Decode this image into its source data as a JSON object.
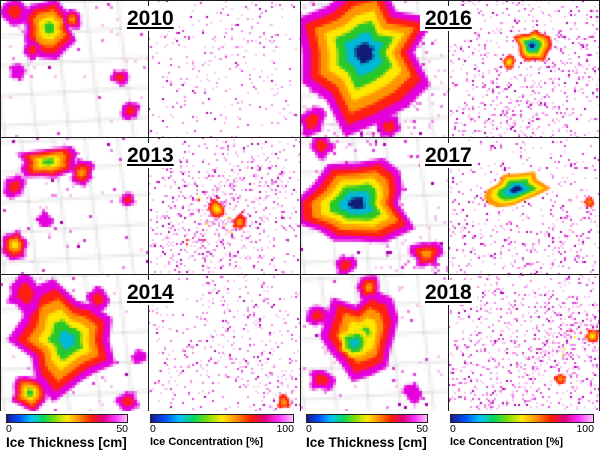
{
  "labels": {
    "y2010": "2010",
    "y2013": "2013",
    "y2014": "2014",
    "y2016": "2016",
    "y2017": "2017",
    "y2018": "2018"
  },
  "colorbars": {
    "thickness": {
      "label": "Ice Thickness [cm]",
      "tick_min": "0",
      "tick_max": "50"
    },
    "concentration": {
      "label": "Ice Concentration [%]",
      "tick_min": "0",
      "tick_max": "100"
    }
  },
  "chart_data": {
    "type": "heatmap",
    "description": "3x2 grid of paired satellite map panels. For each year the left panel is sea-ice thickness (0-50 cm) and the right panel is sea-ice concentration (0-100 %). Left pair column: 2010, 2013, 2014. Right pair column: 2016, 2017, 2018. In 2016 and 2017 a large polynya appears as a dark navy core ringed by green/yellow/red inside a magenta field; other years show smaller scattered features. Background white; concentration panels are speckled pink/magenta.",
    "years": [
      "2010",
      "2013",
      "2014",
      "2016",
      "2017",
      "2018"
    ],
    "variables": [
      {
        "name": "ice_thickness",
        "label": "Ice Thickness [cm]",
        "range": [
          0,
          50
        ]
      },
      {
        "name": "ice_concentration",
        "label": "Ice Concentration [%]",
        "range": [
          0,
          100
        ]
      }
    ],
    "colorbar_gradient": [
      "#1a1a90",
      "#0050ff",
      "#00c0ff",
      "#00d860",
      "#80e000",
      "#ffe800",
      "#ff9000",
      "#ff2000",
      "#e00080",
      "#ff30ff",
      "#ffc0ff"
    ],
    "colormap_ramp": [
      "#ffb0f8",
      "#e400dc",
      "#ff2010",
      "#ff9500",
      "#ffe800",
      "#28c828",
      "#00b8d8",
      "#101c78"
    ],
    "panels": {
      "p2010t": {
        "year": "2010",
        "variable": "ice_thickness",
        "pixel": 3,
        "grid": true,
        "seed": 11,
        "speckle": {
          "base": 0.012,
          "centers": [
            {
              "x": 0.3,
              "y": 0.25,
              "r": 0.5,
              "b": 0.03
            }
          ]
        },
        "blobs": [
          {
            "x": 0.33,
            "y": 0.2,
            "r": 0.2,
            "from": 1,
            "to": 5
          },
          {
            "x": 0.1,
            "y": 0.08,
            "r": 0.09,
            "from": 1,
            "to": 2
          },
          {
            "x": 0.48,
            "y": 0.14,
            "r": 0.08,
            "from": 1,
            "to": 3
          },
          {
            "x": 0.22,
            "y": 0.36,
            "r": 0.07,
            "from": 1,
            "to": 2
          },
          {
            "x": 0.12,
            "y": 0.52,
            "r": 0.06,
            "from": 1,
            "to": 1
          },
          {
            "x": 0.8,
            "y": 0.56,
            "r": 0.06,
            "from": 1,
            "to": 2
          },
          {
            "x": 0.88,
            "y": 0.8,
            "r": 0.07,
            "from": 1,
            "to": 2
          }
        ]
      },
      "p2010c": {
        "year": "2010",
        "variable": "ice_concentration",
        "pixel": 2,
        "grid": false,
        "seed": 12,
        "speckle": {
          "base": 0.035,
          "centers": [
            {
              "x": 0.45,
              "y": 0.35,
              "r": 0.55,
              "b": 0.035
            },
            {
              "x": 0.75,
              "y": 0.8,
              "r": 0.35,
              "b": 0.03
            }
          ]
        },
        "blobs": []
      },
      "p2016t": {
        "year": "2016",
        "variable": "ice_thickness",
        "pixel": 3,
        "grid": true,
        "seed": 13,
        "speckle": {
          "base": 0.05,
          "centers": [
            {
              "x": 0.5,
              "y": 0.95,
              "r": 0.45,
              "b": 0.14
            },
            {
              "x": 0.95,
              "y": 0.5,
              "r": 0.3,
              "b": 0.06
            }
          ]
        },
        "blobs": [
          {
            "x": 0.43,
            "y": 0.38,
            "r": 0.52,
            "from": 1,
            "to": 7
          },
          {
            "x": 0.08,
            "y": 0.88,
            "r": 0.1,
            "from": 1,
            "to": 2
          },
          {
            "x": 0.6,
            "y": 0.92,
            "r": 0.09,
            "from": 1,
            "to": 2
          },
          {
            "x": 0.92,
            "y": 0.12,
            "r": 0.07,
            "from": 1,
            "to": 1
          }
        ]
      },
      "p2016c": {
        "year": "2016",
        "variable": "ice_concentration",
        "pixel": 2,
        "grid": false,
        "seed": 14,
        "speckle": {
          "base": 0.08,
          "centers": [
            {
              "x": 0.5,
              "y": 0.85,
              "r": 0.5,
              "b": 0.12
            },
            {
              "x": 0.85,
              "y": 0.35,
              "r": 0.3,
              "b": 0.09
            },
            {
              "x": 0.15,
              "y": 0.2,
              "r": 0.3,
              "b": 0.04
            }
          ]
        },
        "blobs": [
          {
            "x": 0.55,
            "y": 0.33,
            "r": 0.12,
            "from": 2,
            "to": 7
          },
          {
            "x": 0.4,
            "y": 0.45,
            "r": 0.05,
            "from": 2,
            "to": 4
          }
        ]
      },
      "p2013t": {
        "year": "2013",
        "variable": "ice_thickness",
        "pixel": 3,
        "grid": true,
        "seed": 15,
        "speckle": {
          "base": 0.015,
          "centers": [
            {
              "x": 0.3,
              "y": 0.3,
              "r": 0.4,
              "b": 0.03
            }
          ]
        },
        "blobs": [
          {
            "x": 0.32,
            "y": 0.18,
            "r": 0.22,
            "ry": 0.12,
            "from": 1,
            "to": 5
          },
          {
            "x": 0.55,
            "y": 0.26,
            "r": 0.09,
            "from": 1,
            "to": 3
          },
          {
            "x": 0.1,
            "y": 0.36,
            "r": 0.08,
            "from": 1,
            "to": 2
          },
          {
            "x": 0.1,
            "y": 0.78,
            "r": 0.1,
            "from": 1,
            "to": 4
          },
          {
            "x": 0.3,
            "y": 0.6,
            "r": 0.06,
            "from": 1,
            "to": 1
          },
          {
            "x": 0.86,
            "y": 0.46,
            "r": 0.05,
            "from": 1,
            "to": 2
          }
        ]
      },
      "p2013c": {
        "year": "2013",
        "variable": "ice_concentration",
        "pixel": 2,
        "grid": false,
        "seed": 16,
        "speckle": {
          "base": 0.06,
          "centers": [
            {
              "x": 0.45,
              "y": 0.55,
              "r": 0.45,
              "b": 0.22
            },
            {
              "x": 0.15,
              "y": 0.85,
              "r": 0.3,
              "b": 0.1
            },
            {
              "x": 0.8,
              "y": 0.25,
              "r": 0.3,
              "b": 0.05
            }
          ]
        },
        "blobs": [
          {
            "x": 0.45,
            "y": 0.52,
            "r": 0.06,
            "from": 2,
            "to": 4
          },
          {
            "x": 0.6,
            "y": 0.62,
            "r": 0.05,
            "from": 2,
            "to": 3
          }
        ]
      },
      "p2017t": {
        "year": "2017",
        "variable": "ice_thickness",
        "pixel": 3,
        "grid": true,
        "seed": 17,
        "speckle": {
          "base": 0.03,
          "centers": [
            {
              "x": 0.8,
              "y": 0.9,
              "r": 0.35,
              "b": 0.08
            },
            {
              "x": 0.3,
              "y": 0.05,
              "r": 0.3,
              "b": 0.05
            }
          ]
        },
        "blobs": [
          {
            "x": 0.38,
            "y": 0.48,
            "r": 0.46,
            "ry": 0.32,
            "rot": -18,
            "from": 1,
            "to": 7
          },
          {
            "x": 0.14,
            "y": 0.06,
            "r": 0.09,
            "from": 1,
            "to": 2
          },
          {
            "x": 0.85,
            "y": 0.85,
            "r": 0.11,
            "from": 1,
            "to": 3
          },
          {
            "x": 0.3,
            "y": 0.93,
            "r": 0.08,
            "from": 1,
            "to": 2
          }
        ]
      },
      "p2017c": {
        "year": "2017",
        "variable": "ice_concentration",
        "pixel": 2,
        "grid": false,
        "seed": 18,
        "speckle": {
          "base": 0.06,
          "centers": [
            {
              "x": 0.5,
              "y": 0.88,
              "r": 0.5,
              "b": 0.1
            },
            {
              "x": 0.92,
              "y": 0.5,
              "r": 0.28,
              "b": 0.1
            },
            {
              "x": 0.12,
              "y": 0.3,
              "r": 0.3,
              "b": 0.04
            }
          ]
        },
        "blobs": [
          {
            "x": 0.45,
            "y": 0.38,
            "r": 0.24,
            "ry": 0.11,
            "rot": -14,
            "from": 3,
            "to": 7
          },
          {
            "x": 0.93,
            "y": 0.47,
            "r": 0.04,
            "from": 2,
            "to": 3
          }
        ]
      },
      "p2014t": {
        "year": "2014",
        "variable": "ice_thickness",
        "pixel": 3,
        "grid": true,
        "seed": 19,
        "speckle": {
          "base": 0.02,
          "centers": [
            {
              "x": 0.5,
              "y": 0.5,
              "r": 0.5,
              "b": 0.03
            }
          ]
        },
        "blobs": [
          {
            "x": 0.45,
            "y": 0.48,
            "r": 0.38,
            "from": 1,
            "to": 6
          },
          {
            "x": 0.17,
            "y": 0.14,
            "r": 0.13,
            "from": 1,
            "to": 2
          },
          {
            "x": 0.66,
            "y": 0.18,
            "r": 0.09,
            "from": 1,
            "to": 2
          },
          {
            "x": 0.2,
            "y": 0.86,
            "r": 0.13,
            "from": 1,
            "to": 5
          },
          {
            "x": 0.86,
            "y": 0.92,
            "r": 0.08,
            "from": 1,
            "to": 2
          },
          {
            "x": 0.93,
            "y": 0.6,
            "r": 0.05,
            "from": 1,
            "to": 1
          }
        ]
      },
      "p2014c": {
        "year": "2014",
        "variable": "ice_concentration",
        "pixel": 2,
        "grid": false,
        "seed": 20,
        "speckle": {
          "base": 0.05,
          "centers": [
            {
              "x": 0.6,
              "y": 0.45,
              "r": 0.45,
              "b": 0.06
            },
            {
              "x": 0.85,
              "y": 0.85,
              "r": 0.28,
              "b": 0.12
            },
            {
              "x": 0.2,
              "y": 0.7,
              "r": 0.3,
              "b": 0.04
            }
          ]
        },
        "blobs": [
          {
            "x": 0.89,
            "y": 0.93,
            "r": 0.05,
            "from": 2,
            "to": 3
          }
        ]
      },
      "p2018t": {
        "year": "2018",
        "variable": "ice_thickness",
        "pixel": 3,
        "grid": true,
        "seed": 21,
        "speckle": {
          "base": 0.02,
          "centers": [
            {
              "x": 0.4,
              "y": 0.5,
              "r": 0.45,
              "b": 0.03
            }
          ]
        },
        "blobs": [
          {
            "x": 0.42,
            "y": 0.45,
            "r": 0.3,
            "from": 1,
            "to": 5
          },
          {
            "x": 0.36,
            "y": 0.5,
            "r": 0.1,
            "from": 4,
            "to": 6
          },
          {
            "x": 0.46,
            "y": 0.1,
            "r": 0.09,
            "from": 1,
            "to": 3
          },
          {
            "x": 0.12,
            "y": 0.3,
            "r": 0.08,
            "from": 1,
            "to": 2
          },
          {
            "x": 0.14,
            "y": 0.76,
            "r": 0.09,
            "from": 1,
            "to": 2
          },
          {
            "x": 0.76,
            "y": 0.86,
            "r": 0.07,
            "from": 1,
            "to": 1
          }
        ]
      },
      "p2018c": {
        "year": "2018",
        "variable": "ice_concentration",
        "pixel": 2,
        "grid": false,
        "seed": 22,
        "speckle": {
          "base": 0.09,
          "centers": [
            {
              "x": 0.8,
              "y": 0.5,
              "r": 0.5,
              "b": 0.14
            },
            {
              "x": 0.3,
              "y": 0.85,
              "r": 0.4,
              "b": 0.09
            },
            {
              "x": 0.15,
              "y": 0.15,
              "r": 0.3,
              "b": 0.03
            }
          ]
        },
        "blobs": [
          {
            "x": 0.95,
            "y": 0.45,
            "r": 0.05,
            "from": 2,
            "to": 4
          },
          {
            "x": 0.74,
            "y": 0.76,
            "r": 0.04,
            "from": 2,
            "to": 3
          }
        ]
      }
    }
  }
}
